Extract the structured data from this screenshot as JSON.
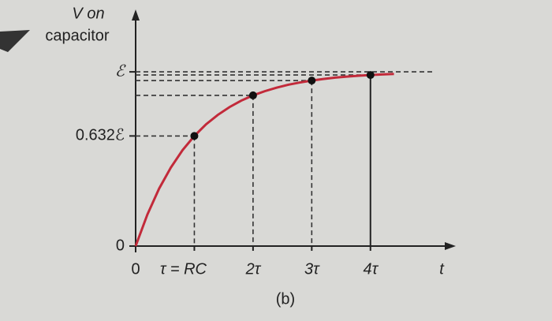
{
  "chart_data": {
    "type": "line",
    "ylabel": [
      "V on",
      "capacitor"
    ],
    "xlabel": "t",
    "caption": "(b)",
    "x": [
      0,
      0.2,
      0.4,
      0.6,
      0.8,
      1.0,
      1.2,
      1.4,
      1.6,
      1.8,
      2.0,
      2.2,
      2.4,
      2.6,
      2.8,
      3.0,
      3.2,
      3.4,
      3.6,
      3.8,
      4.0,
      4.2,
      4.4
    ],
    "values": [
      0,
      0.181,
      0.33,
      0.451,
      0.551,
      0.632,
      0.699,
      0.753,
      0.798,
      0.835,
      0.865,
      0.889,
      0.909,
      0.926,
      0.939,
      0.95,
      0.959,
      0.967,
      0.973,
      0.978,
      0.982,
      0.985,
      0.988
    ],
    "color": "#c22a3a",
    "xlim": [
      0,
      5.4
    ],
    "ylim": [
      0,
      1.34
    ],
    "xticks": [
      0,
      {
        "value": 1,
        "label": "τ = RC"
      },
      {
        "value": 2,
        "label": "2τ"
      },
      {
        "value": 3,
        "label": "3τ"
      },
      {
        "value": 4,
        "label": "4τ"
      }
    ],
    "yticks": [
      0,
      {
        "value": 0.632,
        "label": "0.632ℰ"
      },
      {
        "value": 1,
        "label": "ℰ"
      }
    ]
  }
}
